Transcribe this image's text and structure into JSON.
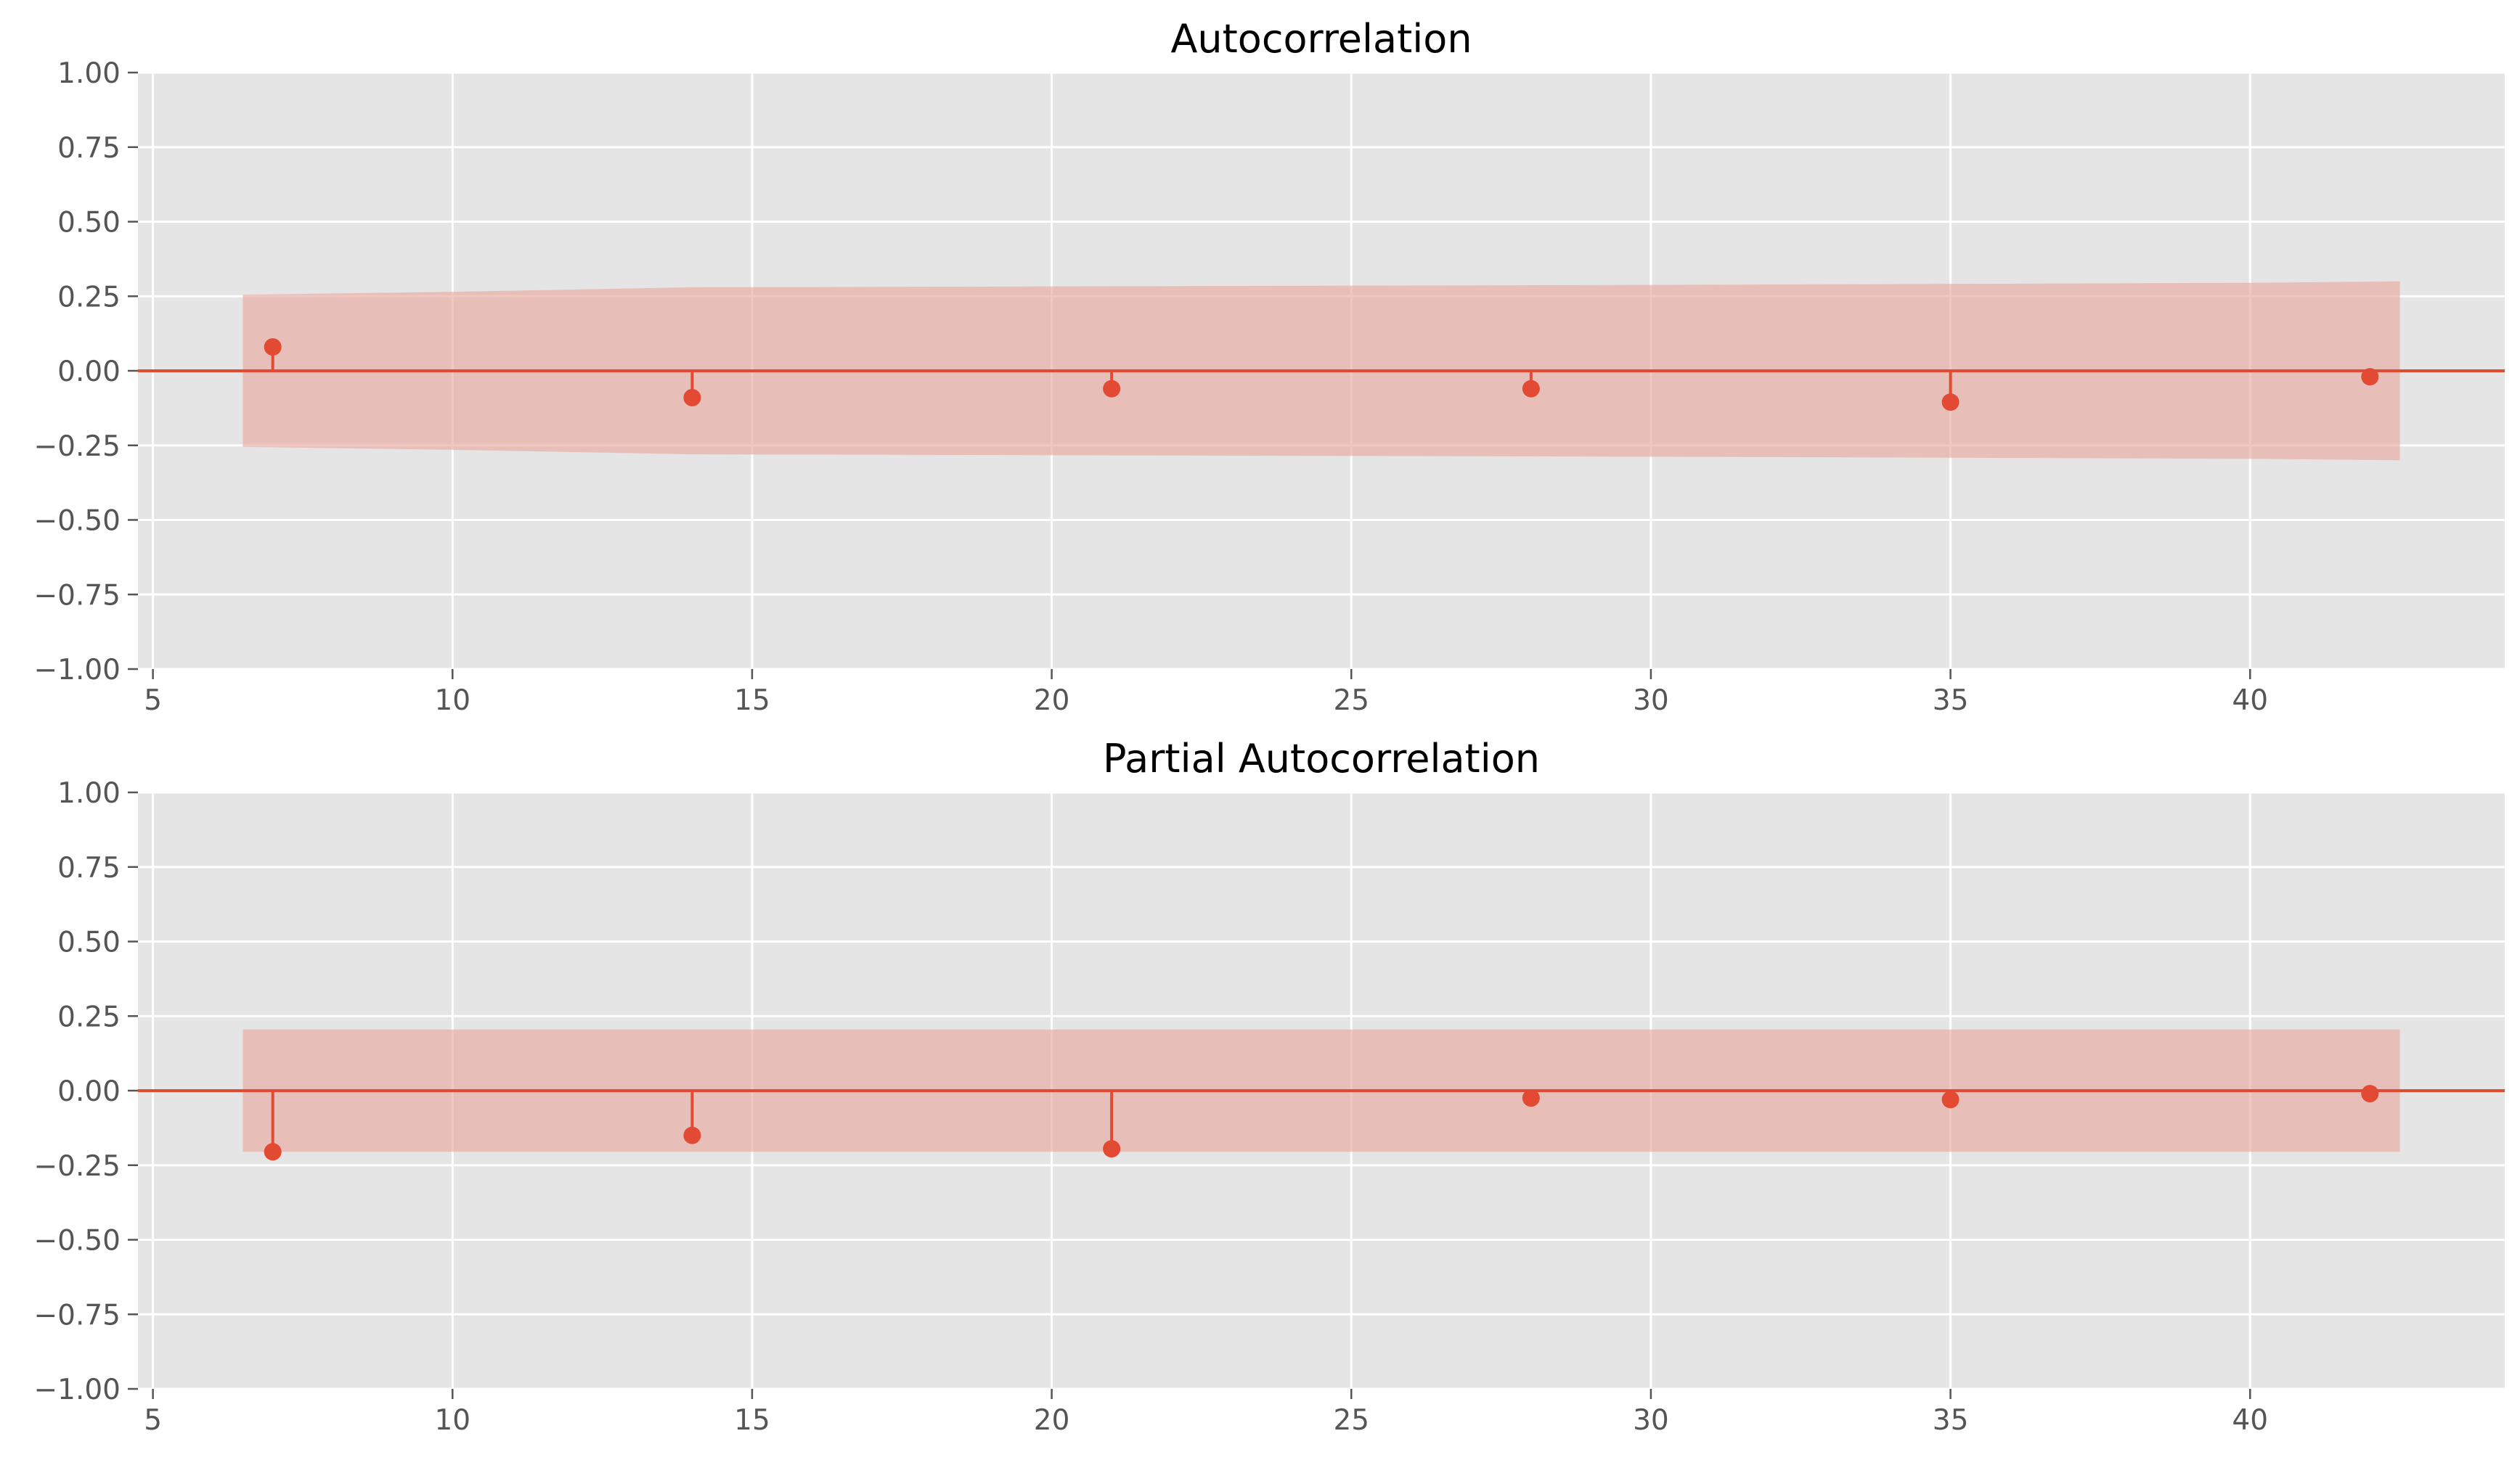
{
  "chart_data": [
    {
      "type": "stem",
      "title": "Autocorrelation",
      "xlabel": "",
      "ylabel": "",
      "xlim": [
        4.75,
        44.25
      ],
      "ylim": [
        -1.0,
        1.0
      ],
      "x_ticks": [
        5,
        10,
        15,
        20,
        25,
        30,
        35,
        40
      ],
      "x_tick_labels": [
        "5",
        "10",
        "15",
        "20",
        "25",
        "30",
        "35",
        "40"
      ],
      "y_ticks": [
        -1.0,
        -0.75,
        -0.5,
        -0.25,
        0.0,
        0.25,
        0.5,
        0.75,
        1.0
      ],
      "y_tick_labels": [
        "−1.00",
        "−0.75",
        "−0.50",
        "−0.25",
        "0.00",
        "0.25",
        "0.50",
        "0.75",
        "1.00"
      ],
      "grid": true,
      "lags": [
        7,
        14,
        21,
        28,
        35,
        42
      ],
      "values": [
        0.08,
        -0.09,
        -0.06,
        -0.06,
        -0.105,
        -0.02
      ],
      "confidence_band": {
        "x": [
          6.5,
          10,
          14,
          20,
          30,
          40,
          42.5
        ],
        "upper": [
          0.255,
          0.265,
          0.28,
          0.283,
          0.288,
          0.295,
          0.3
        ],
        "lower": [
          -0.255,
          -0.265,
          -0.28,
          -0.283,
          -0.288,
          -0.295,
          -0.3
        ]
      },
      "baseline": 0,
      "colors": {
        "marker": "#e24a33",
        "band": "#e8aaa0",
        "background": "#e5e5e5",
        "grid": "#ffffff"
      }
    },
    {
      "type": "stem",
      "title": "Partial Autocorrelation",
      "xlabel": "",
      "ylabel": "",
      "xlim": [
        4.75,
        44.25
      ],
      "ylim": [
        -1.0,
        1.0
      ],
      "x_ticks": [
        5,
        10,
        15,
        20,
        25,
        30,
        35,
        40
      ],
      "x_tick_labels": [
        "5",
        "10",
        "15",
        "20",
        "25",
        "30",
        "35",
        "40"
      ],
      "y_ticks": [
        -1.0,
        -0.75,
        -0.5,
        -0.25,
        0.0,
        0.25,
        0.5,
        0.75,
        1.0
      ],
      "y_tick_labels": [
        "−1.00",
        "−0.75",
        "−0.50",
        "−0.25",
        "0.00",
        "0.25",
        "0.50",
        "0.75",
        "1.00"
      ],
      "grid": true,
      "lags": [
        7,
        14,
        21,
        28,
        35,
        42
      ],
      "values": [
        -0.205,
        -0.15,
        -0.195,
        -0.025,
        -0.03,
        -0.01
      ],
      "confidence_band": {
        "x": [
          6.5,
          42.5
        ],
        "upper": [
          0.205,
          0.205
        ],
        "lower": [
          -0.205,
          -0.205
        ]
      },
      "baseline": 0,
      "colors": {
        "marker": "#e24a33",
        "band": "#e8aaa0",
        "background": "#e5e5e5",
        "grid": "#ffffff"
      }
    }
  ]
}
